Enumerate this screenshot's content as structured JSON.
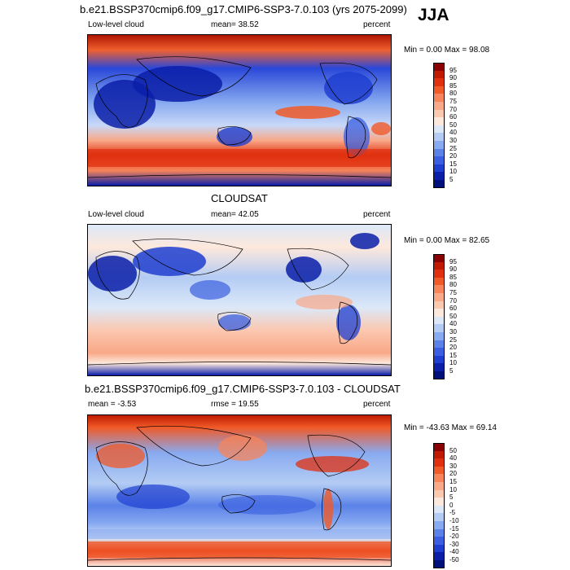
{
  "season": "JJA",
  "panels": [
    {
      "title": "b.e21.BSSP370cmip6.f09_g17.CMIP6-SSP3-7.0.103 (yrs 2075-2099)",
      "left_label": "Low-level cloud",
      "center_label": "mean=  38.52",
      "right_label": "percent",
      "stats": "Min =   0.00 Max =  98.08"
    },
    {
      "title": "CLOUDSAT",
      "left_label": "Low-level cloud",
      "center_label": "mean=  42.05",
      "right_label": "percent",
      "stats": "Min =   0.00 Max =  82.65"
    },
    {
      "title": "b.e21.BSSP370cmip6.f09_g17.CMIP6-SSP3-7.0.103 - CLOUDSAT",
      "left_label": "mean =  -3.53",
      "center_label": "rmse =  19.55",
      "right_label": "percent",
      "stats": "Min = -43.63 Max =  69.14"
    }
  ],
  "chart_data": [
    {
      "type": "heatmap",
      "title": "b.e21.BSSP370cmip6.f09_g17.CMIP6-SSP3-7.0.103 (yrs 2075-2099)",
      "variable": "Low-level cloud",
      "units": "percent",
      "mean": 38.52,
      "min": 0.0,
      "max": 98.08,
      "colorbar_levels": [
        "95",
        "90",
        "85",
        "80",
        "75",
        "70",
        "60",
        "50",
        "40",
        "30",
        "25",
        "20",
        "15",
        "10",
        "5"
      ],
      "colors": [
        "#8b0000",
        "#c01a00",
        "#e03010",
        "#f05a28",
        "#f7845a",
        "#f9a888",
        "#fbc8b0",
        "#fde8dc",
        "#dce8f8",
        "#b4ccf4",
        "#88aaf0",
        "#5a82e8",
        "#3a5fe0",
        "#1e3ed0",
        "#0a1ea8",
        "#00107a"
      ]
    },
    {
      "type": "heatmap",
      "title": "CLOUDSAT",
      "variable": "Low-level cloud",
      "units": "percent",
      "mean": 42.05,
      "min": 0.0,
      "max": 82.65,
      "colorbar_levels": [
        "95",
        "90",
        "85",
        "80",
        "75",
        "70",
        "60",
        "50",
        "40",
        "30",
        "25",
        "20",
        "15",
        "10",
        "5"
      ],
      "colors": [
        "#8b0000",
        "#c01a00",
        "#e03010",
        "#f05a28",
        "#f7845a",
        "#f9a888",
        "#fbc8b0",
        "#fde8dc",
        "#dce8f8",
        "#b4ccf4",
        "#88aaf0",
        "#5a82e8",
        "#3a5fe0",
        "#1e3ed0",
        "#0a1ea8",
        "#00107a"
      ]
    },
    {
      "type": "heatmap",
      "title": "b.e21.BSSP370cmip6.f09_g17.CMIP6-SSP3-7.0.103 - CLOUDSAT",
      "units": "percent",
      "mean": -3.53,
      "rmse": 19.55,
      "min": -43.63,
      "max": 69.14,
      "colorbar_levels": [
        "50",
        "40",
        "30",
        "20",
        "15",
        "10",
        "5",
        "0",
        "-5",
        "-10",
        "-15",
        "-20",
        "-30",
        "-40",
        "-50"
      ],
      "colors": [
        "#8b0000",
        "#c01a00",
        "#e03010",
        "#f05a28",
        "#f7845a",
        "#f9a888",
        "#fbc8b0",
        "#fde8dc",
        "#dce8f8",
        "#b4ccf4",
        "#88aaf0",
        "#5a82e8",
        "#3a5fe0",
        "#1e3ed0",
        "#0a1ea8",
        "#00107a"
      ]
    }
  ]
}
